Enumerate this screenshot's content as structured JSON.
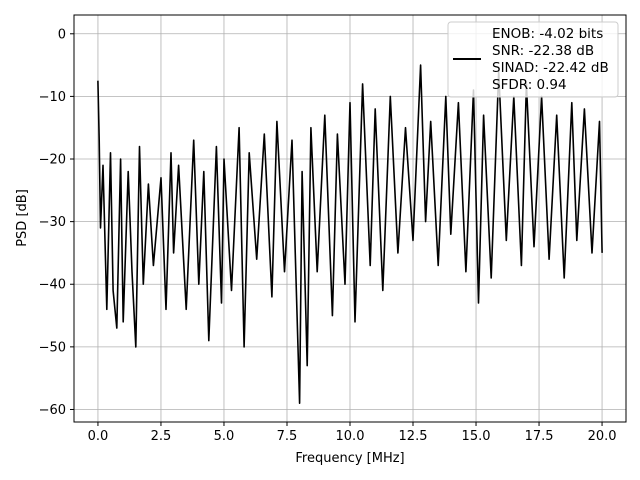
{
  "chart_data": {
    "type": "line",
    "title": "",
    "xlabel": "Frequency [MHz]",
    "ylabel": "PSD [dB]",
    "xlim": [
      -0.95,
      20.95
    ],
    "ylim": [
      -62,
      3
    ],
    "grid": true,
    "xticks": [
      0,
      2.5,
      5,
      7.5,
      10,
      12.5,
      15,
      17.5,
      20
    ],
    "xtick_labels": [
      "0.0",
      "2.5",
      "5.0",
      "7.5",
      "10.0",
      "12.5",
      "15.0",
      "17.5",
      "20.0"
    ],
    "yticks": [
      0,
      -10,
      -20,
      -30,
      -40,
      -50,
      -60
    ],
    "ytick_labels": [
      "0",
      "−10",
      "−20",
      "−30",
      "−40",
      "−50",
      "−60"
    ],
    "legend": {
      "placement": "upper-right",
      "entries": [
        "ENOB: -4.02 bits",
        "SNR: -22.38 dB",
        "SINAD: -22.42 dB",
        "SFDR: 0.94"
      ]
    },
    "series": [
      {
        "color": "#000000",
        "x": [
          0.0,
          0.05,
          0.1,
          0.2,
          0.35,
          0.5,
          0.6,
          0.75,
          0.9,
          1.0,
          1.2,
          1.35,
          1.5,
          1.65,
          1.8,
          2.0,
          2.2,
          2.5,
          2.7,
          2.9,
          3.0,
          3.2,
          3.5,
          3.8,
          4.0,
          4.2,
          4.4,
          4.7,
          4.9,
          5.0,
          5.3,
          5.6,
          5.8,
          6.0,
          6.3,
          6.6,
          6.9,
          7.1,
          7.4,
          7.7,
          8.0,
          8.1,
          8.3,
          8.45,
          8.7,
          9.0,
          9.3,
          9.5,
          9.8,
          10.0,
          10.2,
          10.5,
          10.8,
          11.0,
          11.3,
          11.6,
          11.9,
          12.2,
          12.5,
          12.8,
          13.0,
          13.2,
          13.5,
          13.8,
          14.0,
          14.3,
          14.6,
          14.9,
          15.1,
          15.3,
          15.6,
          15.9,
          16.2,
          16.5,
          16.8,
          17.0,
          17.3,
          17.6,
          17.9,
          18.2,
          18.5,
          18.8,
          19.0,
          19.3,
          19.6,
          19.9,
          20.0
        ],
        "y": [
          -7.5,
          -17,
          -31,
          -21,
          -44,
          -19,
          -41,
          -47,
          -20,
          -46,
          -22,
          -38,
          -50,
          -18,
          -40,
          -24,
          -37,
          -23,
          -44,
          -19,
          -35,
          -21,
          -44,
          -17,
          -40,
          -22,
          -49,
          -18,
          -43,
          -20,
          -41,
          -15,
          -50,
          -19,
          -36,
          -16,
          -42,
          -14,
          -38,
          -17,
          -59,
          -22,
          -53,
          -15,
          -38,
          -13,
          -45,
          -16,
          -40,
          -11,
          -46,
          -8,
          -37,
          -12,
          -41,
          -10,
          -35,
          -15,
          -33,
          -5,
          -30,
          -14,
          -37,
          -10,
          -32,
          -11,
          -38,
          -9,
          -43,
          -13,
          -39,
          -6,
          -33,
          -10,
          -37,
          -8,
          -34,
          -10,
          -36,
          -13,
          -39,
          -11,
          -33,
          -12,
          -35,
          -14,
          -35
        ]
      }
    ]
  }
}
